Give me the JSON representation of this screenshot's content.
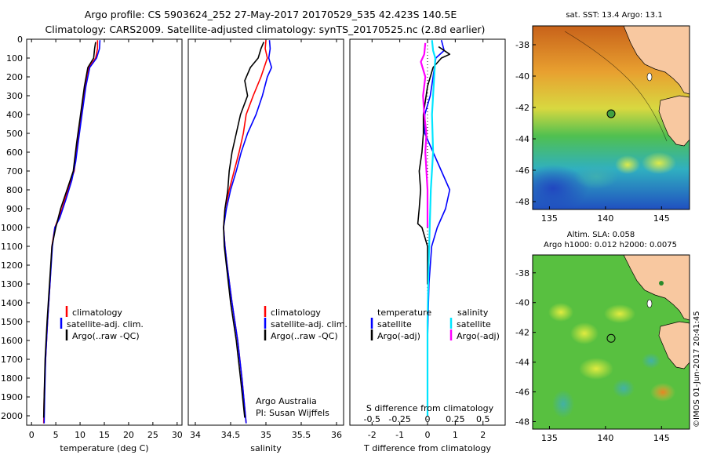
{
  "header": {
    "line1": "Argo profile: CS 5903624_252 27-May-2017 20170529_535 42.423S 140.5E",
    "line2": "Climatology: CARS2009. Satellite-adjusted climatology: synTS_20170525.nc (2.8d earlier)"
  },
  "colors": {
    "climatology": "#ff0000",
    "satellite": "#0000ff",
    "argo": "#000000",
    "sat_salinity": "#00e5ff",
    "argo_salinity": "#ff00ff",
    "land": "#f8c8a0"
  },
  "chart_data": [
    {
      "type": "line",
      "name": "temperature",
      "xlabel": "temperature (deg C)",
      "xlim": [
        -1,
        31
      ],
      "xticks": [
        0,
        5,
        10,
        15,
        20,
        25,
        30
      ],
      "ylim": [
        2050,
        0
      ],
      "yticks": [
        0,
        100,
        200,
        300,
        400,
        500,
        600,
        700,
        800,
        900,
        1000,
        1100,
        1200,
        1300,
        1400,
        1500,
        1600,
        1700,
        1800,
        1900,
        2000
      ],
      "legend": [
        "climatology",
        "satellite-adj. clim.",
        "Argo(..raw -QC)"
      ],
      "series": [
        {
          "name": "climatology",
          "color": "#ff0000",
          "points": [
            [
              13.6,
              5
            ],
            [
              13.6,
              50
            ],
            [
              13.2,
              100
            ],
            [
              11.8,
              150
            ],
            [
              11.0,
              250
            ],
            [
              10.2,
              400
            ],
            [
              9.5,
              550
            ],
            [
              8.8,
              700
            ],
            [
              7.5,
              800
            ],
            [
              6.3,
              900
            ],
            [
              4.8,
              1000
            ],
            [
              4.2,
              1100
            ],
            [
              3.8,
              1300
            ],
            [
              3.3,
              1500
            ],
            [
              2.9,
              1700
            ],
            [
              2.6,
              1900
            ],
            [
              2.5,
              2040
            ]
          ]
        },
        {
          "name": "satellite-adj. clim.",
          "color": "#0000ff",
          "points": [
            [
              14.1,
              5
            ],
            [
              14.0,
              50
            ],
            [
              13.4,
              100
            ],
            [
              12.0,
              150
            ],
            [
              11.2,
              250
            ],
            [
              10.4,
              400
            ],
            [
              9.6,
              550
            ],
            [
              9.1,
              650
            ],
            [
              8.3,
              750
            ],
            [
              7.1,
              850
            ],
            [
              5.8,
              950
            ],
            [
              4.8,
              1000
            ],
            [
              4.3,
              1100
            ],
            [
              3.8,
              1300
            ],
            [
              3.3,
              1500
            ],
            [
              2.9,
              1700
            ],
            [
              2.7,
              1900
            ],
            [
              2.6,
              2040
            ]
          ]
        },
        {
          "name": "Argo(..raw -QC)",
          "color": "#000000",
          "points": [
            [
              13.2,
              15
            ],
            [
              13.0,
              50
            ],
            [
              12.8,
              100
            ],
            [
              11.6,
              150
            ],
            [
              10.9,
              250
            ],
            [
              10.1,
              400
            ],
            [
              9.3,
              550
            ],
            [
              8.6,
              700
            ],
            [
              7.3,
              800
            ],
            [
              6.0,
              900
            ],
            [
              5.0,
              1000
            ],
            [
              4.2,
              1100
            ],
            [
              3.7,
              1300
            ],
            [
              3.2,
              1500
            ],
            [
              2.8,
              1700
            ],
            [
              2.6,
              1900
            ],
            [
              2.5,
              2010
            ]
          ]
        }
      ]
    },
    {
      "type": "line",
      "name": "salinity",
      "xlabel": "salinity",
      "xlim": [
        33.9,
        36.1
      ],
      "xticks": [
        34,
        34.5,
        35,
        35.5,
        36
      ],
      "xtick_labels": [
        "34",
        "34.5",
        "35",
        "35.5",
        "36"
      ],
      "ylim": [
        2050,
        0
      ],
      "legend": [
        "climatology",
        "satellite-adj. clim.",
        "Argo(..raw -QC)"
      ],
      "annotation": [
        "Argo Australia",
        "PI: Susan Wijffels"
      ],
      "series": [
        {
          "name": "climatology",
          "color": "#ff0000",
          "points": [
            [
              35.0,
              5
            ],
            [
              34.99,
              50
            ],
            [
              35.02,
              100
            ],
            [
              34.93,
              200
            ],
            [
              34.82,
              300
            ],
            [
              34.72,
              400
            ],
            [
              34.68,
              500
            ],
            [
              34.62,
              600
            ],
            [
              34.55,
              700
            ],
            [
              34.48,
              800
            ],
            [
              34.42,
              900
            ],
            [
              34.4,
              1000
            ],
            [
              34.42,
              1100
            ],
            [
              34.45,
              1200
            ],
            [
              34.52,
              1400
            ],
            [
              34.6,
              1600
            ],
            [
              34.66,
              1800
            ],
            [
              34.72,
              2040
            ]
          ]
        },
        {
          "name": "satellite-adj. clim.",
          "color": "#0000ff",
          "points": [
            [
              35.05,
              5
            ],
            [
              35.06,
              50
            ],
            [
              35.04,
              100
            ],
            [
              35.08,
              150
            ],
            [
              35.02,
              200
            ],
            [
              34.95,
              300
            ],
            [
              34.86,
              400
            ],
            [
              34.74,
              500
            ],
            [
              34.65,
              600
            ],
            [
              34.58,
              700
            ],
            [
              34.5,
              800
            ],
            [
              34.44,
              900
            ],
            [
              34.4,
              1000
            ],
            [
              34.42,
              1100
            ],
            [
              34.45,
              1200
            ],
            [
              34.52,
              1400
            ],
            [
              34.6,
              1600
            ],
            [
              34.66,
              1800
            ],
            [
              34.72,
              2040
            ]
          ]
        },
        {
          "name": "Argo(..raw -QC)",
          "color": "#000000",
          "points": [
            [
              34.97,
              15
            ],
            [
              34.93,
              50
            ],
            [
              34.89,
              100
            ],
            [
              34.78,
              150
            ],
            [
              34.7,
              220
            ],
            [
              34.74,
              300
            ],
            [
              34.64,
              400
            ],
            [
              34.58,
              500
            ],
            [
              34.52,
              600
            ],
            [
              34.48,
              700
            ],
            [
              34.46,
              800
            ],
            [
              34.42,
              900
            ],
            [
              34.4,
              1000
            ],
            [
              34.41,
              1100
            ],
            [
              34.44,
              1200
            ],
            [
              34.5,
              1400
            ],
            [
              34.58,
              1600
            ],
            [
              34.64,
              1800
            ],
            [
              34.7,
              2010
            ]
          ]
        }
      ]
    },
    {
      "type": "line",
      "name": "difference",
      "xlabel": "T difference from climatology",
      "xlabel_top": "S difference from climatology",
      "xlim": [
        -2.8,
        2.8
      ],
      "xticks": [
        -2,
        -1,
        0,
        1,
        2
      ],
      "xticks_s": [
        -0.5,
        -0.25,
        0,
        0.25,
        0.5
      ],
      "xtick_labels_s": [
        "-0.5",
        "-0.25",
        "0",
        "0.25",
        "0.5"
      ],
      "ylim": [
        2050,
        0
      ],
      "legend_titles": [
        "temperature",
        "salinity"
      ],
      "legend": [
        "satellite",
        "Argo(-adj)",
        "satellite",
        "Argo(-adj)"
      ],
      "series": [
        {
          "name": "temperature satellite",
          "color": "#0000ff",
          "points": [
            [
              0.5,
              5
            ],
            [
              0.6,
              60
            ],
            [
              0.3,
              100
            ],
            [
              0.2,
              200
            ],
            [
              0.1,
              300
            ],
            [
              -0.1,
              400
            ],
            [
              -0.1,
              500
            ],
            [
              0.2,
              600
            ],
            [
              0.5,
              700
            ],
            [
              0.8,
              800
            ],
            [
              0.65,
              900
            ],
            [
              0.35,
              1000
            ],
            [
              0.15,
              1100
            ],
            [
              0.05,
              1300
            ],
            [
              0.0,
              1600
            ],
            [
              0.0,
              2000
            ]
          ]
        },
        {
          "name": "temperature Argo(-adj)",
          "color": "#000000",
          "points": [
            [
              0.4,
              40
            ],
            [
              0.8,
              80
            ],
            [
              0.5,
              100
            ],
            [
              0.2,
              150
            ],
            [
              0.0,
              250
            ],
            [
              -0.15,
              400
            ],
            [
              -0.15,
              500
            ],
            [
              -0.2,
              600
            ],
            [
              -0.3,
              700
            ],
            [
              -0.25,
              800
            ],
            [
              -0.3,
              900
            ],
            [
              -0.35,
              980
            ],
            [
              -0.2,
              1000
            ],
            [
              0.0,
              1100
            ],
            [
              0.0,
              1300
            ]
          ]
        },
        {
          "name": "salinity satellite",
          "color": "#00e5ff",
          "points": [
            [
              0.04,
              5
            ],
            [
              0.05,
              60
            ],
            [
              0.07,
              100
            ],
            [
              0.06,
              200
            ],
            [
              0.05,
              300
            ],
            [
              0.04,
              400
            ],
            [
              0.05,
              600
            ],
            [
              0.03,
              800
            ],
            [
              0.02,
              1000
            ],
            [
              0.01,
              1200
            ],
            [
              0.0,
              1500
            ],
            [
              0.0,
              2000
            ]
          ]
        },
        {
          "name": "salinity Argo(-adj)",
          "color": "#ff00ff",
          "points": [
            [
              -0.02,
              20
            ],
            [
              -0.03,
              80
            ],
            [
              -0.06,
              120
            ],
            [
              -0.02,
              200
            ],
            [
              -0.04,
              300
            ],
            [
              -0.03,
              400
            ],
            [
              -0.01,
              500
            ],
            [
              -0.02,
              600
            ],
            [
              0.0,
              800
            ],
            [
              0.0,
              1000
            ]
          ]
        }
      ]
    },
    {
      "type": "heatmap",
      "name": "sst-map",
      "title": "sat. SST: 13.4  Argo: 13.1",
      "xlim": [
        133.5,
        147.5
      ],
      "ylim": [
        -48.5,
        -36.8
      ],
      "xticks": [
        135,
        140,
        145
      ],
      "yticks": [
        -38,
        -40,
        -42,
        -44,
        -46,
        -48
      ],
      "marker": {
        "lon": 140.5,
        "lat": -42.4
      }
    },
    {
      "type": "heatmap",
      "name": "sla-map",
      "title_line1": "Altim. SLA: 0.058",
      "title_line2": "Argo h1000: 0.012  h2000: 0.0075",
      "xlim": [
        133.5,
        147.5
      ],
      "ylim": [
        -48.5,
        -36.8
      ],
      "xticks": [
        135,
        140,
        145
      ],
      "yticks": [
        -38,
        -40,
        -42,
        -44,
        -46,
        -48
      ],
      "marker": {
        "lon": 140.5,
        "lat": -42.4
      }
    }
  ],
  "credit": "©IMOS 01-Jun-2017 20:41:45"
}
